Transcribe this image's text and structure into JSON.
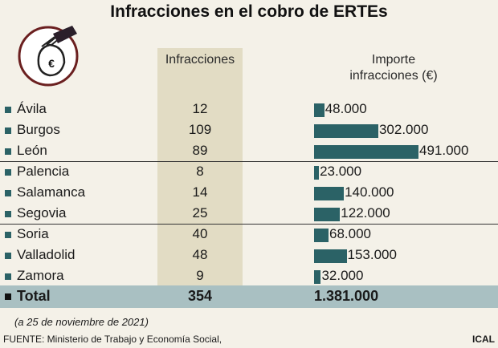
{
  "title": "Infracciones en el cobro de ERTEs",
  "headers": {
    "infracciones": "Infracciones",
    "importe_line1": "Importe",
    "importe_line2": "infracciones (€)"
  },
  "logo_symbol": "€",
  "colors": {
    "bar": "#2b6266",
    "column_shade": "#e2dcc4",
    "total_band": "#a9c0c2",
    "background": "#f4f1e8"
  },
  "chart_data": {
    "type": "bar",
    "categories": [
      "Ávila",
      "Burgos",
      "León",
      "Palencia",
      "Salamanca",
      "Segovia",
      "Soria",
      "Valladolid",
      "Zamora"
    ],
    "series": [
      {
        "values": [
          12,
          109,
          89,
          8,
          14,
          25,
          40,
          48,
          9
        ]
      },
      {
        "values": [
          48000,
          302000,
          491000,
          23000,
          140000,
          122000,
          68000,
          153000,
          32000
        ]
      }
    ],
    "value_labels": [
      "48.000",
      "302.000",
      "491.000",
      "23.000",
      "140.000",
      "122.000",
      "68.000",
      "153.000",
      "32.000"
    ],
    "total": {
      "label": "Total",
      "infracciones": "354",
      "importe": "1.381.000"
    }
  },
  "note": "(a 25 de noviembre de 2021)",
  "source": "FUENTE: Ministerio de Trabajo y Economía Social,",
  "credit": "ICAL"
}
